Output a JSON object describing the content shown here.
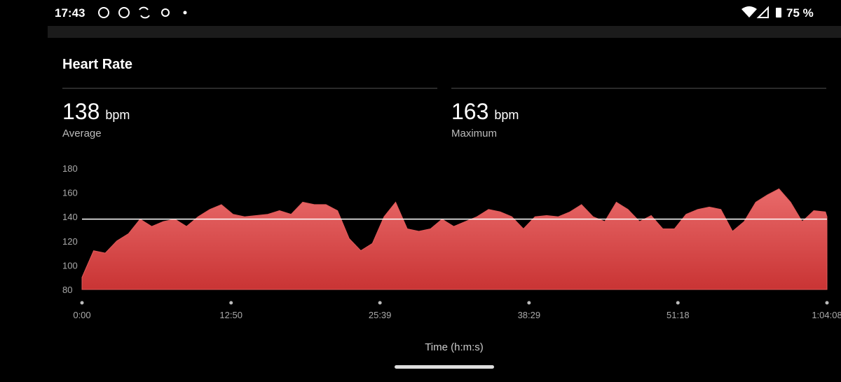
{
  "status_bar": {
    "time": "17:43",
    "battery": "75 %"
  },
  "card": {
    "title": "Heart Rate",
    "stats": [
      {
        "value": 138,
        "unit": "bpm",
        "label": "Average"
      },
      {
        "value": 163,
        "unit": "bpm",
        "label": "Maximum"
      }
    ]
  },
  "chart_data": {
    "type": "area",
    "x_label": "Time (h:m:s)",
    "color": "#e05a5a",
    "x": [
      0,
      60,
      120,
      180,
      240,
      300,
      360,
      420,
      480,
      540,
      600,
      660,
      720,
      780,
      840,
      900,
      960,
      1020,
      1080,
      1140,
      1200,
      1260,
      1320,
      1380,
      1440,
      1500,
      1560,
      1620,
      1680,
      1740,
      1800,
      1860,
      1920,
      1980,
      2040,
      2100,
      2160,
      2220,
      2280,
      2340,
      2400,
      2460,
      2520,
      2580,
      2640,
      2700,
      2760,
      2820,
      2880,
      2940,
      3000,
      3060,
      3120,
      3180,
      3240,
      3300,
      3360,
      3420,
      3480,
      3540,
      3600,
      3660,
      3720,
      3780,
      3840,
      3848
    ],
    "values": [
      90,
      112,
      110,
      120,
      126,
      138,
      132,
      136,
      138,
      132,
      140,
      146,
      150,
      142,
      140,
      141,
      142,
      145,
      142,
      152,
      150,
      150,
      145,
      122,
      112,
      118,
      140,
      152,
      130,
      128,
      130,
      138,
      132,
      136,
      140,
      146,
      144,
      140,
      130,
      140,
      141,
      140,
      144,
      150,
      140,
      136,
      152,
      146,
      136,
      141,
      130,
      130,
      142,
      146,
      148,
      146,
      128,
      136,
      152,
      158,
      163,
      152,
      136,
      145,
      144,
      140
    ],
    "xlim": [
      0,
      3848
    ],
    "xticks": [
      {
        "value": 0,
        "label": "0:00"
      },
      {
        "value": 770,
        "label": "12:50"
      },
      {
        "value": 1539,
        "label": "25:39"
      },
      {
        "value": 2309,
        "label": "38:29"
      },
      {
        "value": 3078,
        "label": "51:18"
      },
      {
        "value": 3848,
        "label": "1:04:08"
      }
    ],
    "ylim": [
      80,
      180
    ],
    "yticks": [
      80,
      100,
      120,
      140,
      160,
      180
    ],
    "grid": false
  }
}
